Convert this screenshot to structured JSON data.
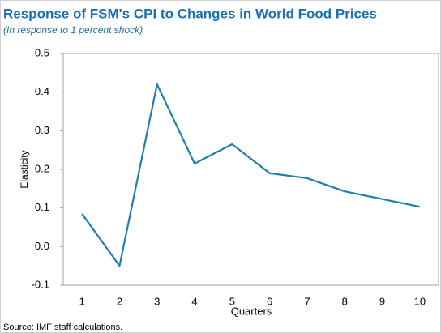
{
  "chart_data": {
    "type": "line",
    "title": "Response of FSM's CPI to Changes in World Food Prices",
    "subtitle": "(In response to 1 percent shock)",
    "y_label": "Elasticity",
    "x_label": "Quarters",
    "source": "Source: IMF staff calculations.",
    "categories": [
      "1",
      "2",
      "3",
      "4",
      "5",
      "6",
      "7",
      "8",
      "9",
      "10"
    ],
    "series": [
      {
        "name": "Elasticity",
        "color": "#1f7fad",
        "values": [
          0.085,
          -0.05,
          0.42,
          0.215,
          0.265,
          0.19,
          0.177,
          0.143,
          0.123,
          0.103
        ]
      }
    ],
    "ylim": [
      -0.1,
      0.5
    ],
    "yticks": [
      -0.1,
      {
        "value": 0,
        "label": "0.0"
      },
      0.1,
      0.2,
      0.3,
      0.4,
      0.5
    ]
  }
}
